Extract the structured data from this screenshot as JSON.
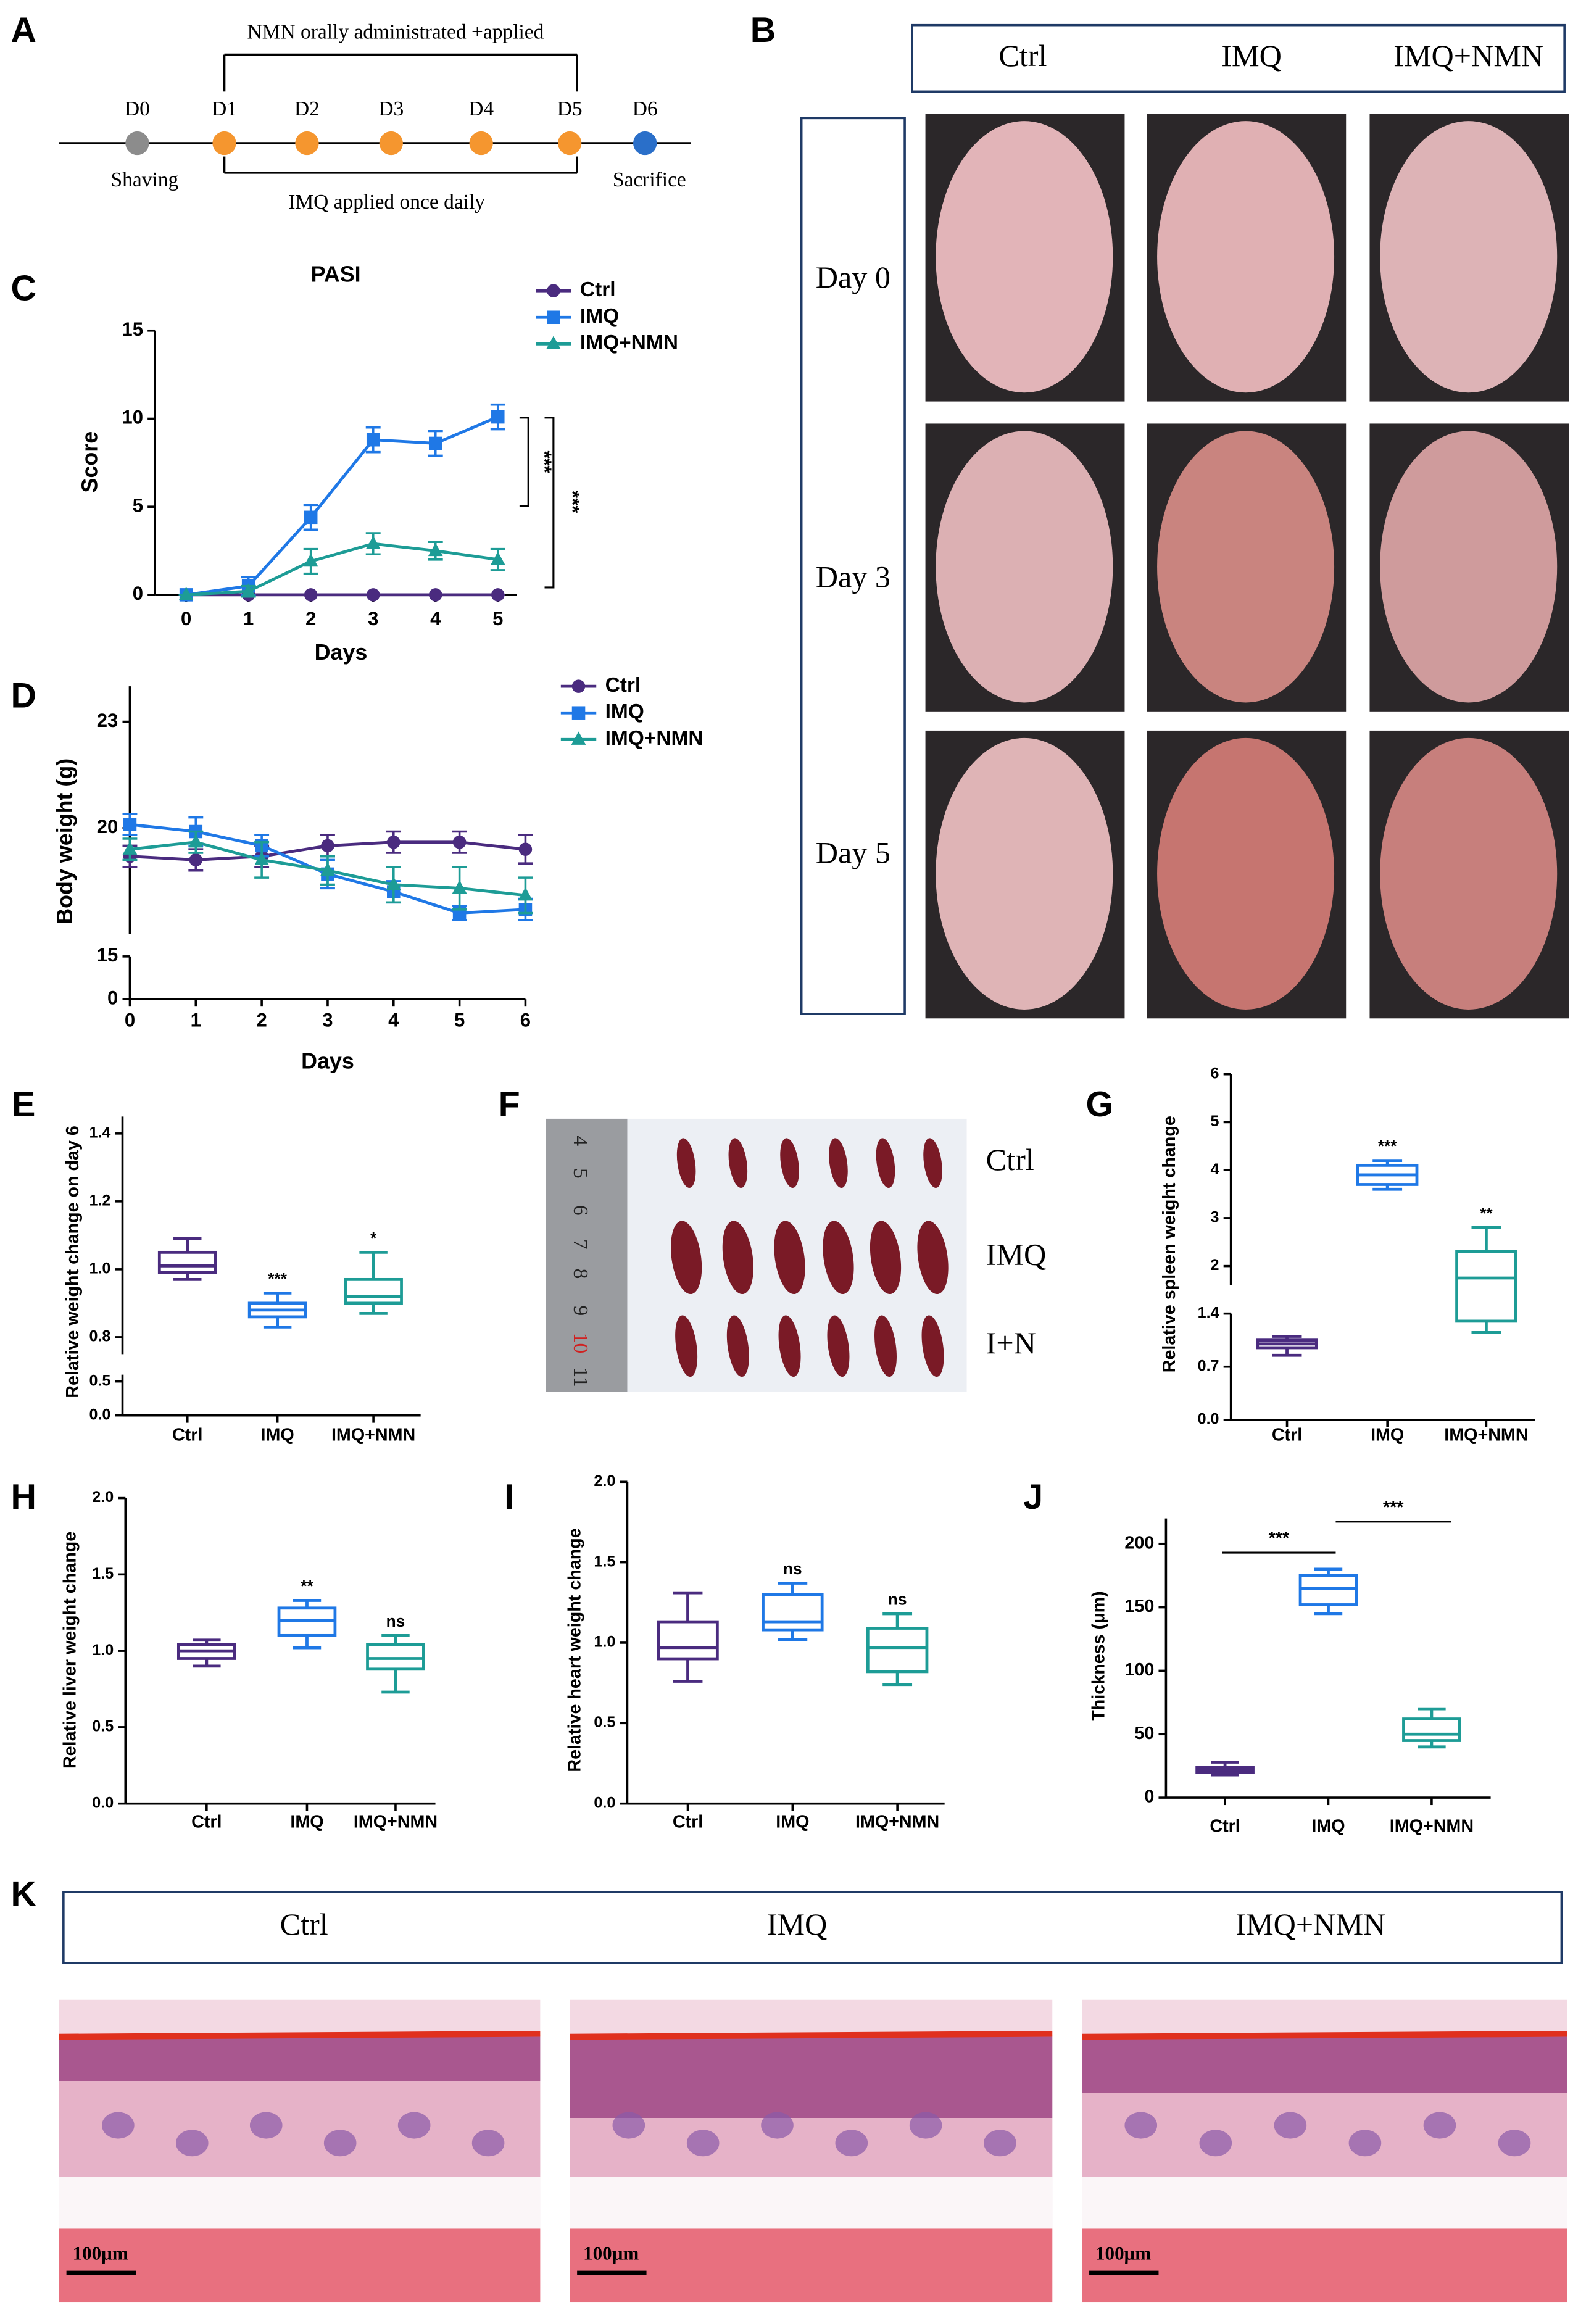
{
  "panel_labels": [
    "A",
    "B",
    "C",
    "D",
    "E",
    "F",
    "G",
    "H",
    "I",
    "J",
    "K"
  ],
  "timeline": {
    "days": [
      "D0",
      "D1",
      "D2",
      "D3",
      "D4",
      "D5",
      "D6"
    ],
    "top_bracket": "NMN orally administrated +applied",
    "bottom_bracket": "IMQ applied once daily",
    "start": "Shaving",
    "end": "Sacrifice"
  },
  "skin_photos": {
    "columns": [
      "Ctrl",
      "IMQ",
      "IMQ+NMN"
    ],
    "rows": [
      "Day 0",
      "Day 3",
      "Day 5"
    ]
  },
  "spleen_photo": {
    "ruler": [
      "4",
      "5",
      "6",
      "7",
      "8",
      "9",
      "10",
      "11"
    ],
    "rows": [
      "Ctrl",
      "IMQ",
      "I+N"
    ]
  },
  "histology": {
    "columns": [
      "Ctrl",
      "IMQ",
      "IMQ+NMN"
    ],
    "scale_bar": "100μm"
  },
  "chart_data": [
    {
      "type": "line",
      "title": "PASI",
      "xlabel": "Days",
      "ylabel": "Score",
      "x": [
        0,
        1,
        2,
        3,
        4,
        5
      ],
      "xlim": [
        -0.5,
        5.3
      ],
      "xticks": [
        0,
        1,
        2,
        3,
        4,
        5
      ],
      "ylim": [
        0,
        15
      ],
      "yticks": [
        0,
        5,
        10,
        15
      ],
      "legend": "right",
      "series": [
        {
          "name": "Ctrl",
          "color": "#4a2b7f",
          "marker": "circle",
          "values": [
            0,
            0,
            0,
            0,
            0,
            0
          ],
          "errors": [
            0,
            0,
            0,
            0,
            0,
            0
          ]
        },
        {
          "name": "IMQ",
          "color": "#1f78e6",
          "marker": "square",
          "values": [
            0,
            0.5,
            4.4,
            8.8,
            8.6,
            10.1
          ],
          "errors": [
            0,
            0.5,
            0.7,
            0.7,
            0.7,
            0.7
          ]
        },
        {
          "name": "IMQ+NMN",
          "color": "#1d9c96",
          "marker": "triangle",
          "values": [
            0,
            0.2,
            1.9,
            2.9,
            2.5,
            2.0
          ],
          "errors": [
            0,
            0.3,
            0.7,
            0.6,
            0.5,
            0.6
          ]
        }
      ],
      "annotations": [
        "***",
        "***"
      ]
    },
    {
      "type": "line",
      "xlabel": "Days",
      "ylabel": "Body weight (g)",
      "x": [
        0,
        1,
        2,
        3,
        4,
        5,
        6
      ],
      "xlim": [
        0,
        6
      ],
      "xticks": [
        0,
        1,
        2,
        3,
        4,
        5,
        6
      ],
      "ylim": [
        0,
        24
      ],
      "ybreak": [
        15,
        17
      ],
      "yticks": [
        0,
        15,
        20,
        23
      ],
      "legend": "right",
      "series": [
        {
          "name": "Ctrl",
          "color": "#4a2b7f",
          "marker": "circle",
          "values": [
            19.2,
            19.1,
            19.2,
            19.5,
            19.6,
            19.6,
            19.4
          ],
          "errors": [
            0.3,
            0.3,
            0.3,
            0.3,
            0.3,
            0.3,
            0.4
          ]
        },
        {
          "name": "IMQ",
          "color": "#1f78e6",
          "marker": "square",
          "values": [
            20.1,
            19.9,
            19.5,
            18.7,
            18.2,
            17.6,
            17.7
          ],
          "errors": [
            0.3,
            0.4,
            0.3,
            0.4,
            0.3,
            0.2,
            0.3
          ]
        },
        {
          "name": "IMQ+NMN",
          "color": "#1d9c96",
          "marker": "triangle",
          "values": [
            19.4,
            19.6,
            19.1,
            18.8,
            18.4,
            18.3,
            18.1
          ],
          "errors": [
            0.3,
            0.3,
            0.5,
            0.4,
            0.5,
            0.6,
            0.5
          ]
        }
      ]
    },
    {
      "type": "box",
      "ylabel": "Relative weight change on day 6",
      "categories": [
        "Ctrl",
        "IMQ",
        "IMQ+NMN"
      ],
      "colors": [
        "#4a2b7f",
        "#1f78e6",
        "#1d9c96"
      ],
      "ylim": [
        0,
        1.45
      ],
      "ybreak": [
        0.6,
        0.75
      ],
      "yticks": [
        {
          "value": 0,
          "label": "0.0"
        },
        0.5,
        0.8,
        {
          "value": 1,
          "label": "1.0"
        },
        1.2,
        1.4
      ],
      "boxes": [
        {
          "min": 0.97,
          "q1": 0.99,
          "median": 1.01,
          "q3": 1.05,
          "max": 1.09
        },
        {
          "min": 0.83,
          "q1": 0.86,
          "median": 0.88,
          "q3": 0.9,
          "max": 0.93
        },
        {
          "min": 0.87,
          "q1": 0.9,
          "median": 0.92,
          "q3": 0.97,
          "max": 1.05
        }
      ],
      "annotations": [
        null,
        "***",
        "*"
      ]
    },
    {
      "type": "box",
      "ylabel": "Relative spleen weight change",
      "categories": [
        "Ctrl",
        "IMQ",
        "IMQ+NMN"
      ],
      "colors": [
        "#4a2b7f",
        "#1f78e6",
        "#1d9c96"
      ],
      "ylim": [
        0,
        6
      ],
      "ybreak": [
        1.4,
        1.6
      ],
      "yticks": [
        {
          "value": 0,
          "label": "0.0"
        },
        0.7,
        1.4,
        2,
        3,
        4,
        5,
        6
      ],
      "boxes": [
        {
          "min": 0.85,
          "q1": 0.95,
          "median": 1.0,
          "q3": 1.05,
          "max": 1.1
        },
        {
          "min": 3.6,
          "q1": 3.7,
          "median": 3.9,
          "q3": 4.1,
          "max": 4.2
        },
        {
          "min": 1.15,
          "q1": 1.3,
          "median": 1.75,
          "q3": 2.3,
          "max": 2.8
        }
      ],
      "annotations": [
        null,
        "***",
        "**"
      ]
    },
    {
      "type": "box",
      "ylabel": "Relative liver weight change",
      "categories": [
        "Ctrl",
        "IMQ",
        "IMQ+NMN"
      ],
      "colors": [
        "#4a2b7f",
        "#1f78e6",
        "#1d9c96"
      ],
      "ylim": [
        0,
        2
      ],
      "yticks": [
        {
          "value": 0,
          "label": "0.0"
        },
        0.5,
        {
          "value": 1,
          "label": "1.0"
        },
        1.5,
        {
          "value": 2,
          "label": "2.0"
        }
      ],
      "boxes": [
        {
          "min": 0.9,
          "q1": 0.95,
          "median": 1.0,
          "q3": 1.04,
          "max": 1.07
        },
        {
          "min": 1.02,
          "q1": 1.1,
          "median": 1.2,
          "q3": 1.28,
          "max": 1.33
        },
        {
          "min": 0.73,
          "q1": 0.88,
          "median": 0.95,
          "q3": 1.04,
          "max": 1.1
        }
      ],
      "annotations": [
        null,
        "**",
        "ns"
      ]
    },
    {
      "type": "box",
      "ylabel": "Relative heart weight change",
      "categories": [
        "Ctrl",
        "IMQ",
        "IMQ+NMN"
      ],
      "colors": [
        "#4a2b7f",
        "#1f78e6",
        "#1d9c96"
      ],
      "ylim": [
        0,
        2
      ],
      "yticks": [
        {
          "value": 0,
          "label": "0.0"
        },
        0.5,
        {
          "value": 1,
          "label": "1.0"
        },
        1.5,
        {
          "value": 2,
          "label": "2.0"
        }
      ],
      "boxes": [
        {
          "min": 0.76,
          "q1": 0.9,
          "median": 0.97,
          "q3": 1.13,
          "max": 1.31
        },
        {
          "min": 1.02,
          "q1": 1.08,
          "median": 1.13,
          "q3": 1.3,
          "max": 1.37
        },
        {
          "min": 0.74,
          "q1": 0.82,
          "median": 0.97,
          "q3": 1.09,
          "max": 1.18
        }
      ],
      "annotations": [
        null,
        "ns",
        "ns"
      ]
    },
    {
      "type": "box",
      "ylabel": "Thickness (μm)",
      "categories": [
        "Ctrl",
        "IMQ",
        "IMQ+NMN"
      ],
      "colors": [
        "#4a2b7f",
        "#1f78e6",
        "#1d9c96"
      ],
      "ylim": [
        0,
        220
      ],
      "yticks": [
        0,
        50,
        100,
        150,
        200
      ],
      "boxes": [
        {
          "min": 18,
          "q1": 20,
          "median": 22,
          "q3": 24,
          "max": 28
        },
        {
          "min": 145,
          "q1": 152,
          "median": 165,
          "q3": 175,
          "max": 180
        },
        {
          "min": 40,
          "q1": 45,
          "median": 50,
          "q3": 62,
          "max": 70
        }
      ],
      "comparisons": [
        "***",
        "***"
      ]
    }
  ]
}
